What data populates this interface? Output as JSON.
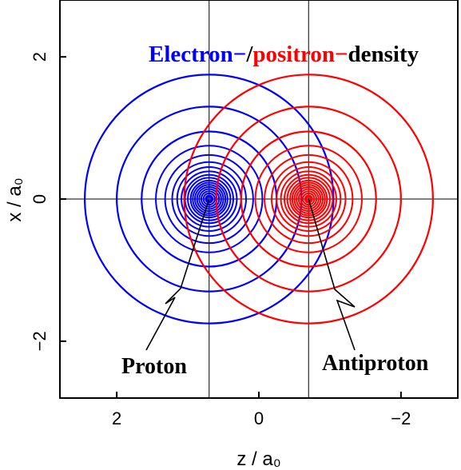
{
  "chart_data": {
    "type": "contour",
    "title_parts": [
      {
        "text": "Electron−",
        "color": "#0000ff"
      },
      {
        "text": "/",
        "color": "#000000"
      },
      {
        "text": "positron−",
        "color": "#ff0000"
      },
      {
        "text": "density",
        "color": "#000000"
      }
    ],
    "xlabel": "z / a₀",
    "ylabel": "x / a₀",
    "xlim": [
      2.8,
      -2.8
    ],
    "ylim": [
      2.8,
      -2.8
    ],
    "x_ticks": [
      {
        "value": 2,
        "label": "2"
      },
      {
        "value": 0,
        "label": "0"
      },
      {
        "value": -2,
        "label": "−2"
      }
    ],
    "y_ticks": [
      {
        "value": -2,
        "label": "−2"
      },
      {
        "value": 0,
        "label": "0"
      },
      {
        "value": 2,
        "label": "2"
      }
    ],
    "reference_lines": {
      "horizontal": [
        0
      ],
      "vertical": [
        0.7,
        -0.7
      ]
    },
    "series": [
      {
        "name": "Electron",
        "color": "#0000ff",
        "center": [
          0.7,
          0
        ],
        "radii": [
          1.75,
          1.3,
          0.95,
          0.75,
          0.62,
          0.52,
          0.45,
          0.39,
          0.34,
          0.3,
          0.26,
          0.23,
          0.2,
          0.17,
          0.14,
          0.11,
          0.08,
          0.05,
          0.03
        ]
      },
      {
        "name": "Positron",
        "color": "#ff0000",
        "center": [
          -0.7,
          0
        ],
        "radii": [
          1.75,
          1.3,
          0.95,
          0.75,
          0.62,
          0.52,
          0.45,
          0.39,
          0.34,
          0.3,
          0.26,
          0.23,
          0.2,
          0.17,
          0.14,
          0.11,
          0.08,
          0.05,
          0.03
        ]
      }
    ],
    "annotations": [
      {
        "text": "Proton",
        "target": [
          0.7,
          0
        ],
        "color": "#000000"
      },
      {
        "text": "Antiproton",
        "target": [
          -0.7,
          0
        ],
        "color": "#000000"
      }
    ]
  }
}
